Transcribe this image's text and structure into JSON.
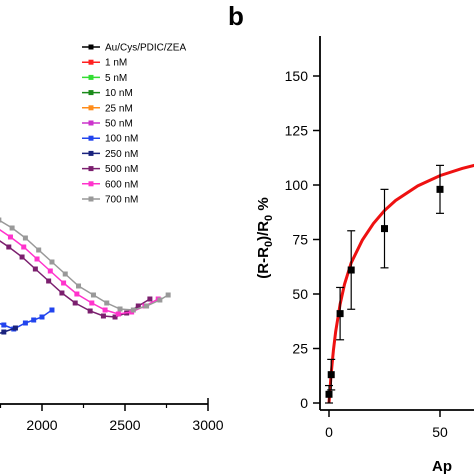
{
  "panel_label": "b",
  "right_xlabel_fragment": "Ap",
  "chart_data": [
    {
      "type": "line",
      "panel": "left (cropped)",
      "xlabel": "",
      "ylabel": "",
      "xlim": [
        1550,
        3000
      ],
      "xticks": [
        2000,
        2500,
        3000
      ],
      "grid": false,
      "legend_position": "top-right",
      "series": [
        {
          "name": "Au/Cys/PDIC/ZEA",
          "color": "#000000",
          "marker": "square",
          "x": [],
          "y": []
        },
        {
          "name": "1 nM",
          "color": "#ff2020",
          "marker": "square",
          "x": [],
          "y": []
        },
        {
          "name": "5 nM",
          "color": "#33dd33",
          "marker": "square",
          "x": [],
          "y": []
        },
        {
          "name": "10 nM",
          "color": "#1a8a1a",
          "marker": "square",
          "x": [],
          "y": []
        },
        {
          "name": "25 nM",
          "color": "#ff8c1a",
          "marker": "square",
          "x": [],
          "y": []
        },
        {
          "name": "50 nM",
          "color": "#cc33cc",
          "marker": "square",
          "x": [],
          "y": []
        },
        {
          "name": "100 nM",
          "color": "#2244ee",
          "marker": "square",
          "x": [
            1560,
            1620,
            1700,
            1770,
            1830,
            1900,
            1950,
            2000,
            2060
          ],
          "y": [
            -60,
            -58,
            -56,
            -60,
            -64,
            -58,
            -55,
            -52,
            -45
          ]
        },
        {
          "name": "250 nM",
          "color": "#1a237e",
          "marker": "square",
          "x": [
            1560,
            1610,
            1660,
            1710,
            1770,
            1840
          ],
          "y": [
            -66,
            -70,
            -68,
            -70,
            -67,
            -63
          ]
        },
        {
          "name": "500 nM",
          "color": "#7b1f6e",
          "marker": "square",
          "x": [
            1560,
            1650,
            1720,
            1800,
            1880,
            1960,
            2040,
            2120,
            2200,
            2290,
            2370,
            2440,
            2510,
            2580,
            2650
          ],
          "y": [
            35,
            33,
            27,
            18,
            8,
            -4,
            -16,
            -28,
            -38,
            -46,
            -51,
            -52,
            -48,
            -41,
            -34
          ]
        },
        {
          "name": "600 nM",
          "color": "#ff33cc",
          "marker": "square",
          "x": [
            1560,
            1650,
            1730,
            1810,
            1890,
            1970,
            2050,
            2130,
            2210,
            2300,
            2380,
            2460,
            2540,
            2620,
            2700
          ],
          "y": [
            44,
            42,
            37,
            28,
            18,
            6,
            -6,
            -18,
            -29,
            -38,
            -45,
            -49,
            -47,
            -41,
            -34
          ]
        },
        {
          "name": "700 nM",
          "color": "#999999",
          "marker": "square",
          "x": [
            1560,
            1650,
            1740,
            1820,
            1900,
            1980,
            2060,
            2140,
            2220,
            2310,
            2390,
            2470,
            2550,
            2630,
            2710,
            2760
          ],
          "y": [
            52,
            50,
            45,
            37,
            27,
            15,
            3,
            -9,
            -21,
            -30,
            -38,
            -44,
            -45,
            -41,
            -35,
            -30
          ]
        }
      ]
    },
    {
      "type": "scatter",
      "panel": "b",
      "xlabel": "Ap",
      "ylabel": "(R-R0)/R0 %",
      "xlim": [
        -3,
        110
      ],
      "ylim": [
        0,
        180
      ],
      "xticks": [
        0,
        50
      ],
      "yticks": [
        0,
        25,
        50,
        75,
        100,
        125,
        150
      ],
      "grid": false,
      "series": [
        {
          "name": "",
          "color": "#000000",
          "marker": "square",
          "x": [
            0,
            1,
            5,
            10,
            25,
            50
          ],
          "y": [
            4,
            13,
            41,
            61,
            80,
            98
          ],
          "yerr": [
            4,
            7,
            12,
            18,
            18,
            11
          ]
        },
        {
          "name": "",
          "color": "#ee1111",
          "marker": "none",
          "kind": "fit",
          "x": [
            0,
            1,
            2,
            3,
            5,
            7,
            10,
            15,
            20,
            25,
            30,
            40,
            50,
            60,
            70,
            80,
            90,
            100,
            110
          ],
          "y": [
            0,
            13.7,
            24.3,
            32.7,
            45.3,
            54.5,
            64.3,
            74.7,
            82.3,
            88.3,
            92.9,
            99.6,
            104.3,
            107.6,
            110.2,
            112.2,
            113.7,
            115.0,
            116.0
          ]
        }
      ]
    }
  ]
}
